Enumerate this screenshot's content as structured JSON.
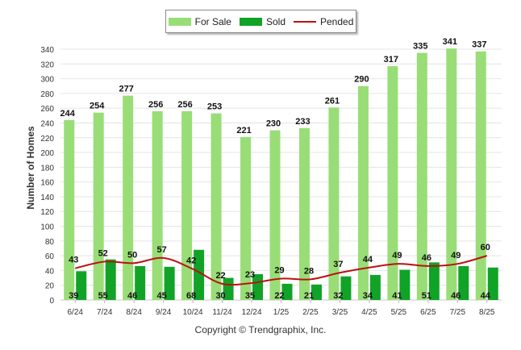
{
  "chart_data": {
    "type": "bar",
    "categories": [
      "6/24",
      "7/24",
      "8/24",
      "9/24",
      "10/24",
      "11/24",
      "12/24",
      "1/25",
      "2/25",
      "3/25",
      "4/25",
      "5/25",
      "6/25",
      "7/25",
      "8/25"
    ],
    "series": [
      {
        "name": "For Sale",
        "type": "bar",
        "color": "#99dd77",
        "values": [
          244,
          254,
          277,
          256,
          256,
          253,
          221,
          230,
          233,
          261,
          290,
          317,
          335,
          341,
          337
        ]
      },
      {
        "name": "Sold",
        "type": "bar",
        "color": "#11a327",
        "values": [
          39,
          55,
          46,
          45,
          68,
          30,
          35,
          22,
          21,
          32,
          34,
          41,
          51,
          46,
          44
        ]
      },
      {
        "name": "Pended",
        "type": "line",
        "color": "#bb1111",
        "values": [
          43,
          52,
          50,
          57,
          42,
          22,
          23,
          29,
          28,
          37,
          44,
          49,
          46,
          49,
          60
        ]
      }
    ],
    "ylabel": "Number of Homes",
    "xlabel": "",
    "ylim": [
      0,
      340
    ],
    "yticks": [
      0,
      20,
      40,
      60,
      80,
      100,
      120,
      140,
      160,
      180,
      200,
      220,
      240,
      260,
      280,
      300,
      320,
      340
    ],
    "grid": true,
    "legend_position": "top-center"
  },
  "legend": {
    "for_sale": "For Sale",
    "sold": "Sold",
    "pended": "Pended"
  },
  "footer": {
    "copyright": "Copyright © Trendgraphix, Inc."
  }
}
